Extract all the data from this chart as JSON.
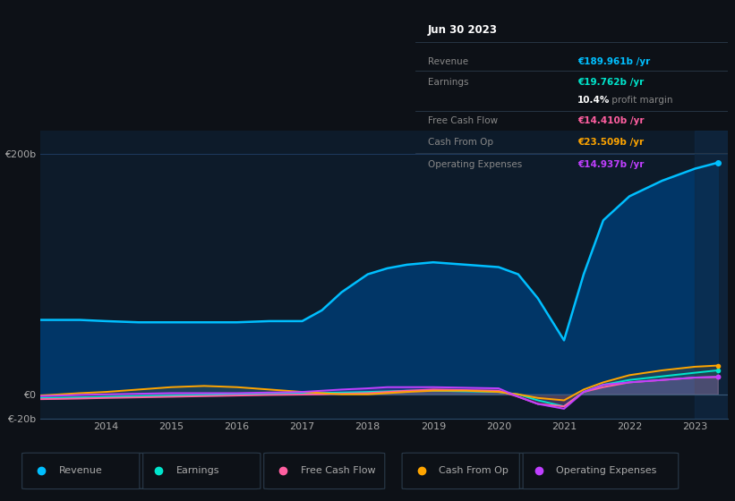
{
  "bg_color": "#0d1117",
  "chart_bg": "#0d1b2a",
  "grid_color": "#1e3a5f",
  "text_color": "#aaaaaa",
  "years": [
    2013.0,
    2013.3,
    2013.6,
    2014.0,
    2014.5,
    2015.0,
    2015.5,
    2016.0,
    2016.5,
    2017.0,
    2017.3,
    2017.6,
    2018.0,
    2018.3,
    2018.6,
    2019.0,
    2019.5,
    2020.0,
    2020.3,
    2020.6,
    2021.0,
    2021.3,
    2021.6,
    2022.0,
    2022.5,
    2023.0,
    2023.35
  ],
  "revenue": [
    62,
    62,
    62,
    61,
    60,
    60,
    60,
    60,
    61,
    61,
    70,
    85,
    100,
    105,
    108,
    110,
    108,
    106,
    100,
    80,
    45,
    100,
    145,
    165,
    178,
    188,
    193
  ],
  "earnings": [
    -3,
    -2.8,
    -2.5,
    -2,
    -1.5,
    -1,
    -0.5,
    0.2,
    0.5,
    1,
    1.2,
    1.5,
    2,
    2.5,
    3,
    3,
    2.5,
    2,
    0,
    -5,
    -10,
    2,
    8,
    12,
    15,
    18,
    20
  ],
  "fcf": [
    -4,
    -3.8,
    -3.5,
    -3,
    -2.5,
    -2,
    -1.5,
    -1,
    -0.5,
    -0.2,
    0,
    0.5,
    1,
    2,
    3,
    4,
    3.5,
    3,
    -2,
    -8,
    -10,
    2,
    6,
    10,
    12,
    14,
    14.5
  ],
  "cash_op": [
    -1,
    0,
    1,
    2,
    4,
    6,
    7,
    6,
    4,
    2,
    1,
    0,
    0,
    1,
    2,
    3,
    3,
    2,
    0,
    -3,
    -5,
    4,
    10,
    16,
    20,
    23,
    24
  ],
  "op_expenses": [
    -1.5,
    -1,
    -0.5,
    0,
    0.5,
    1,
    1,
    1,
    1.5,
    2,
    3,
    4,
    5,
    6,
    6,
    6,
    5.5,
    5,
    -2,
    -8,
    -12,
    2,
    8,
    10,
    12,
    14,
    14.5
  ],
  "revenue_color": "#00bfff",
  "earnings_color": "#00e5cc",
  "fcf_color": "#ff5fa0",
  "cash_op_color": "#ffa500",
  "op_expenses_color": "#bf3fff",
  "ylim": [
    -20,
    220
  ],
  "xtick_years": [
    2014,
    2015,
    2016,
    2017,
    2018,
    2019,
    2020,
    2021,
    2022,
    2023
  ],
  "legend_labels": [
    "Revenue",
    "Earnings",
    "Free Cash Flow",
    "Cash From Op",
    "Operating Expenses"
  ],
  "legend_colors": [
    "#00bfff",
    "#00e5cc",
    "#ff5fa0",
    "#ffa500",
    "#bf3fff"
  ],
  "tooltip_date": "Jun 30 2023",
  "tooltip_rows": [
    {
      "label": "Revenue",
      "value": "€189.961b /yr",
      "color": "#00bfff"
    },
    {
      "label": "Earnings",
      "value": "€19.762b /yr",
      "color": "#00e5cc"
    },
    {
      "label": "",
      "value": "10.4% profit margin",
      "color": null
    },
    {
      "label": "Free Cash Flow",
      "value": "€14.410b /yr",
      "color": "#ff5fa0"
    },
    {
      "label": "Cash From Op",
      "value": "€23.509b /yr",
      "color": "#ffa500"
    },
    {
      "label": "Operating Expenses",
      "value": "€14.937b /yr",
      "color": "#bf3fff"
    }
  ]
}
